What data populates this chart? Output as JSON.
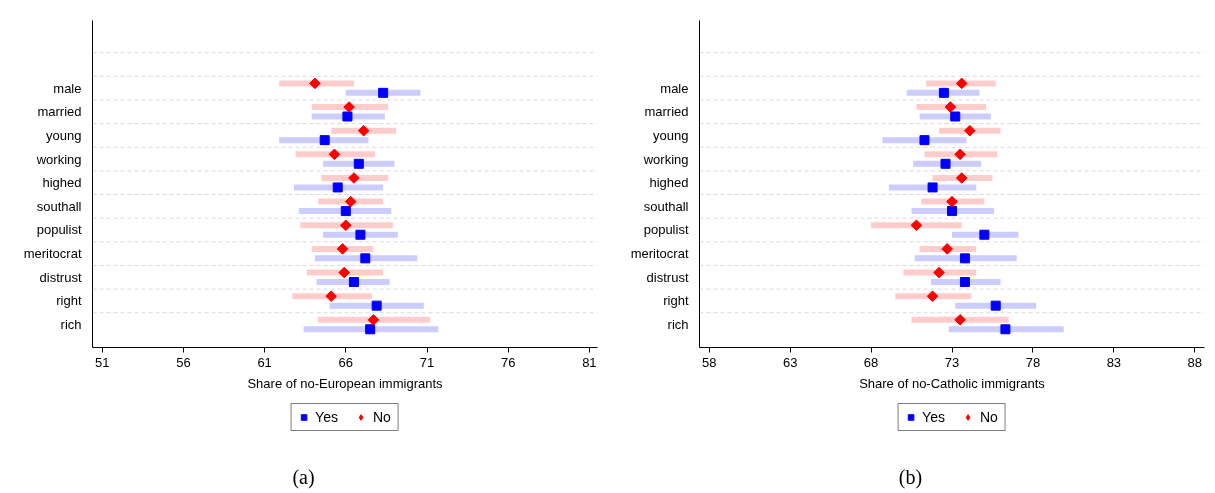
{
  "chart_data": [
    {
      "type": "scatter",
      "orientation": "horizontal",
      "categories": [
        "male",
        "married",
        "young",
        "working",
        "highed",
        "southall",
        "populist",
        "meritocrat",
        "distrust",
        "right",
        "rich"
      ],
      "xlabel": "Share of no-European immigrants",
      "xlim": [
        50.4,
        81.5
      ],
      "xticks": [
        51,
        56,
        61,
        66,
        71,
        76,
        81
      ],
      "grid": "y",
      "legend": "bottom",
      "annotations": [
        "(a)"
      ],
      "series": [
        {
          "name": "Yes",
          "color": "#0000ff",
          "marker": "square",
          "values": [
            68.3,
            66.1,
            64.7,
            66.8,
            65.5,
            66.0,
            66.9,
            67.2,
            66.5,
            67.9,
            67.5
          ],
          "errors": [
            [
              66.0,
              70.6
            ],
            [
              63.9,
              68.4
            ],
            [
              61.9,
              67.4
            ],
            [
              64.6,
              69.0
            ],
            [
              62.8,
              68.3
            ],
            [
              63.1,
              68.8
            ],
            [
              64.6,
              69.2
            ],
            [
              64.1,
              70.4
            ],
            [
              64.2,
              68.7
            ],
            [
              65.0,
              70.8
            ],
            [
              63.4,
              71.7
            ]
          ]
        },
        {
          "name": "No",
          "color": "#ff0000",
          "marker": "diamond",
          "values": [
            64.1,
            66.2,
            67.1,
            65.3,
            66.5,
            66.3,
            66.0,
            65.8,
            65.9,
            65.1,
            67.7
          ],
          "errors": [
            [
              61.9,
              66.5
            ],
            [
              63.9,
              68.6
            ],
            [
              65.1,
              69.1
            ],
            [
              62.9,
              67.8
            ],
            [
              64.5,
              68.6
            ],
            [
              64.3,
              68.3
            ],
            [
              63.2,
              68.9
            ],
            [
              63.9,
              67.7
            ],
            [
              63.6,
              68.3
            ],
            [
              62.7,
              67.6
            ],
            [
              64.3,
              71.2
            ]
          ]
        }
      ]
    },
    {
      "type": "scatter",
      "orientation": "horizontal",
      "categories": [
        "male",
        "married",
        "young",
        "working",
        "highed",
        "southall",
        "populist",
        "meritocrat",
        "distrust",
        "right",
        "rich"
      ],
      "xlabel": "Share of no-Catholic immigrants",
      "xlim": [
        57.4,
        88.6
      ],
      "xticks": [
        58,
        63,
        68,
        73,
        78,
        83,
        88
      ],
      "grid": "y",
      "legend": "bottom",
      "annotations": [
        "(b)"
      ],
      "series": [
        {
          "name": "Yes",
          "color": "#0000ff",
          "marker": "square",
          "values": [
            72.5,
            73.2,
            71.3,
            72.6,
            71.8,
            73.0,
            75.0,
            73.8,
            73.8,
            75.7,
            76.3
          ],
          "errors": [
            [
              70.2,
              74.7
            ],
            [
              71.0,
              75.4
            ],
            [
              68.7,
              73.9
            ],
            [
              70.6,
              74.8
            ],
            [
              69.1,
              74.5
            ],
            [
              70.5,
              75.6
            ],
            [
              73.0,
              77.1
            ],
            [
              70.7,
              77.0
            ],
            [
              71.7,
              76.0
            ],
            [
              73.2,
              78.2
            ],
            [
              72.8,
              79.9
            ]
          ]
        },
        {
          "name": "No",
          "color": "#ff0000",
          "marker": "diamond",
          "values": [
            73.6,
            72.9,
            74.1,
            73.5,
            73.6,
            73.0,
            70.8,
            72.7,
            72.2,
            71.8,
            73.5
          ],
          "errors": [
            [
              71.4,
              75.7
            ],
            [
              70.8,
              75.1
            ],
            [
              72.2,
              76.0
            ],
            [
              71.3,
              75.8
            ],
            [
              71.8,
              75.5
            ],
            [
              71.1,
              75.0
            ],
            [
              68.0,
              73.6
            ],
            [
              71.0,
              74.5
            ],
            [
              70.0,
              74.5
            ],
            [
              69.5,
              74.2
            ],
            [
              70.5,
              76.5
            ]
          ]
        }
      ]
    }
  ]
}
